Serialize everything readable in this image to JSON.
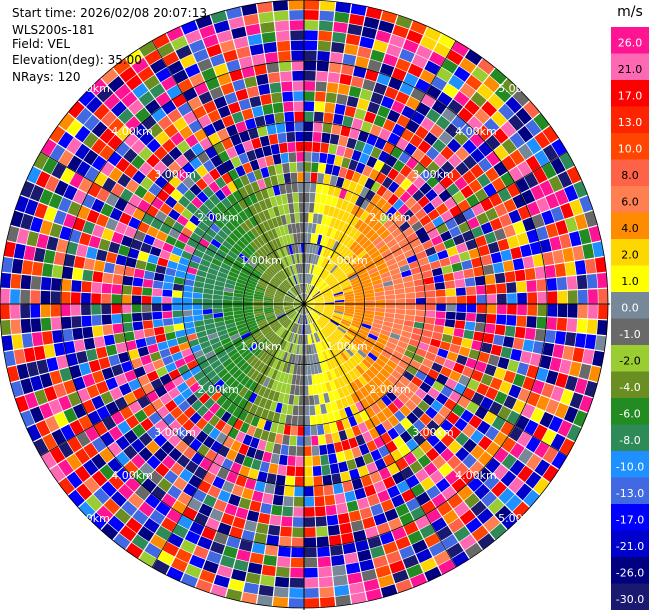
{
  "header": {
    "start_time": "Start time: 2026/02/08 20:07:13",
    "instrument": "WLS200s-181",
    "field": "Field: VEL",
    "elevation": "Elevation(deg): 35.00",
    "nrays": "NRays: 120"
  },
  "chart_data": {
    "type": "heatmap",
    "subtype": "polar-ppi",
    "field": "VEL",
    "units": "m/s",
    "nrays": 120,
    "elevation_deg": 35.0,
    "range_rings_km": [
      "1.00km",
      "2.00km",
      "3.00km",
      "4.00km",
      "5.00km"
    ],
    "range_label_values": [
      1,
      2,
      3,
      4,
      5
    ],
    "colorbar": {
      "label": "m/s",
      "tick_labels": [
        "26.0",
        "21.0",
        "17.0",
        "13.0",
        "10.0",
        "8.0",
        "6.0",
        "4.0",
        "2.0",
        "1.0",
        "0.0",
        "-1.0",
        "-2.0",
        "-4.0",
        "-6.0",
        "-8.0",
        "-10.0",
        "-13.0",
        "-17.0",
        "-21.0",
        "-26.0",
        "-30.0"
      ],
      "colors": [
        "#ff1493",
        "#ff69b4",
        "#ff0000",
        "#ff2400",
        "#ff4500",
        "#ff6347",
        "#ff7f50",
        "#ff8c00",
        "#ffd700",
        "#ffff00",
        "#778899",
        "#696969",
        "#9acd32",
        "#6b8e23",
        "#228b22",
        "#2e8b57",
        "#1e90ff",
        "#4169e1",
        "#0000ff",
        "#0000cd",
        "#000080",
        "#191970"
      ]
    },
    "pattern": {
      "inner_radius_km": 1.9,
      "description_sectors": [
        {
          "direction": "west",
          "velocity_range": [
            -13,
            -1
          ]
        },
        {
          "direction": "east",
          "velocity_range": [
            1,
            13
          ]
        }
      ]
    }
  }
}
